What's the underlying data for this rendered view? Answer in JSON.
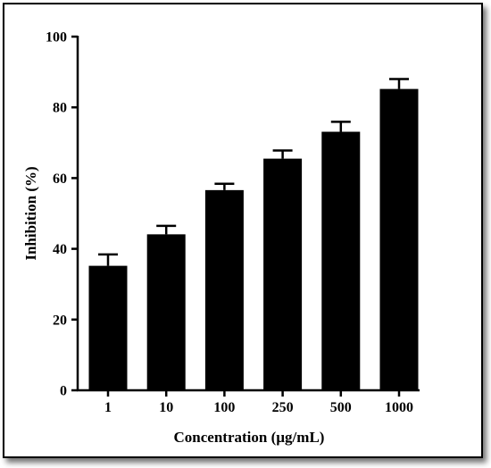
{
  "chart_data": {
    "type": "bar",
    "categories": [
      "1",
      "10",
      "100",
      "250",
      "500",
      "1000"
    ],
    "values": [
      35.2,
      44.1,
      56.6,
      65.5,
      73.1,
      85.2
    ],
    "errors": [
      3.2,
      2.4,
      1.8,
      2.3,
      2.8,
      2.8
    ],
    "xlabel": "Concentration (µg/mL)",
    "ylabel": "Inhibition (%)",
    "ylim": [
      0,
      100
    ],
    "yticks": [
      "0",
      "20",
      "40",
      "60",
      "80",
      "100"
    ],
    "bar_color": "#000000",
    "grid": false,
    "legend": "none"
  }
}
